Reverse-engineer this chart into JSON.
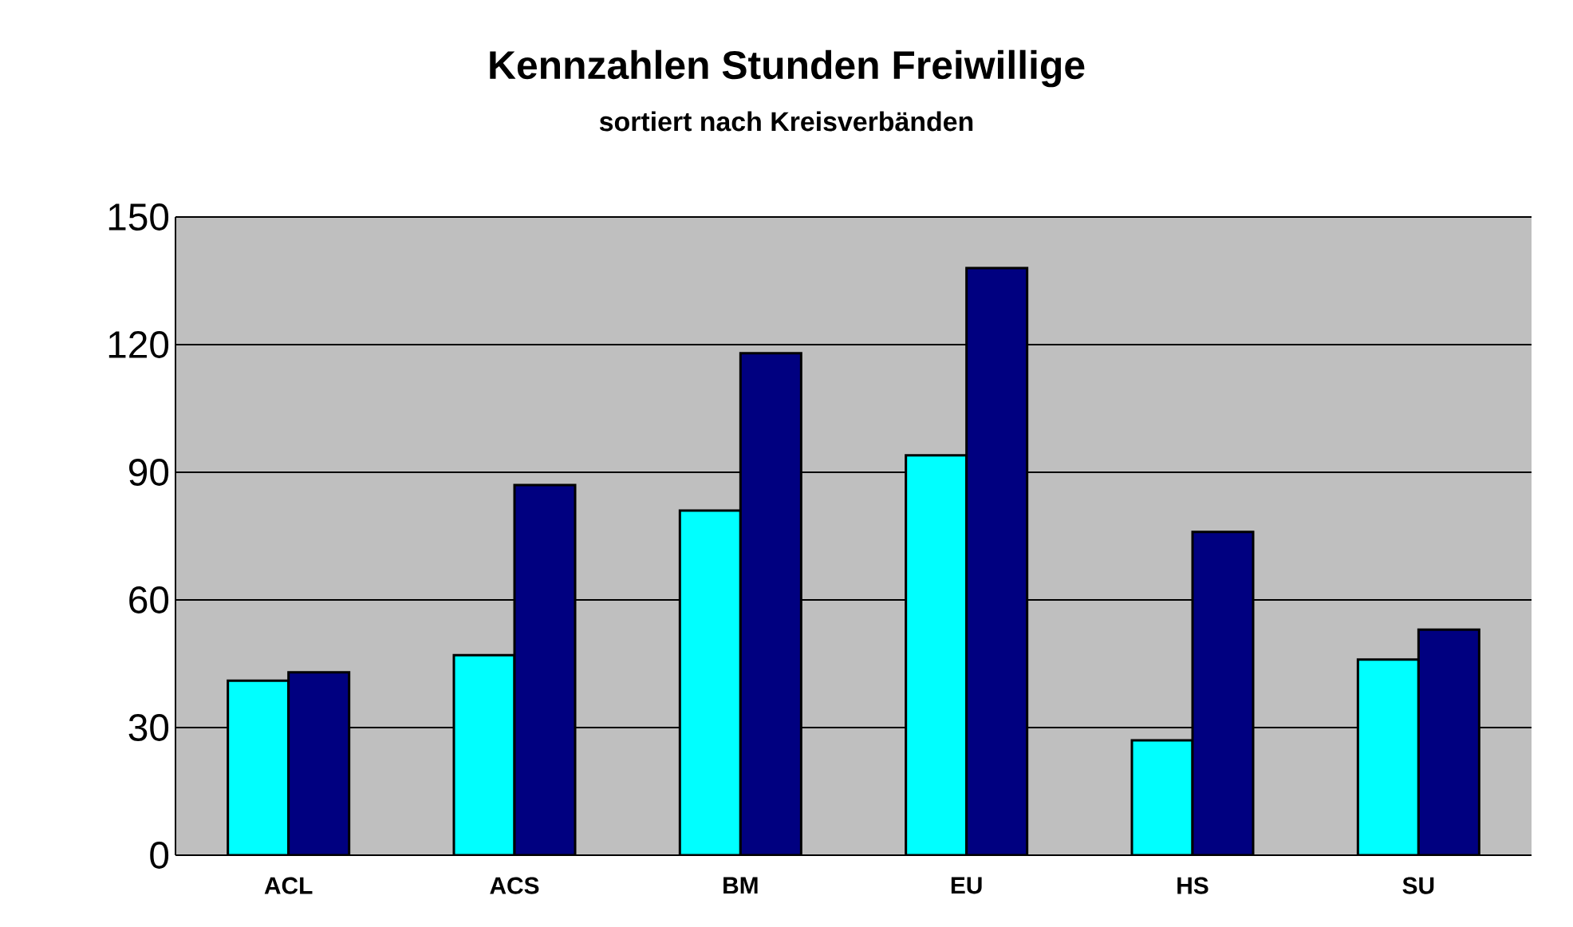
{
  "chart_data": {
    "type": "bar",
    "title": "Kennzahlen Stunden Freiwillige",
    "subtitle": "sortiert nach Kreisverbänden",
    "categories": [
      "ACL",
      "ACS",
      "BM",
      "EU",
      "HS",
      "SU"
    ],
    "series": [
      {
        "color": "#00ffff",
        "values": [
          41,
          47,
          81,
          94,
          27,
          46
        ]
      },
      {
        "color": "#000080",
        "values": [
          43,
          87,
          118,
          138,
          76,
          53
        ]
      }
    ],
    "ylim": [
      0,
      150
    ],
    "yticks": [
      0,
      30,
      60,
      90,
      120,
      150
    ],
    "grid": "y"
  }
}
